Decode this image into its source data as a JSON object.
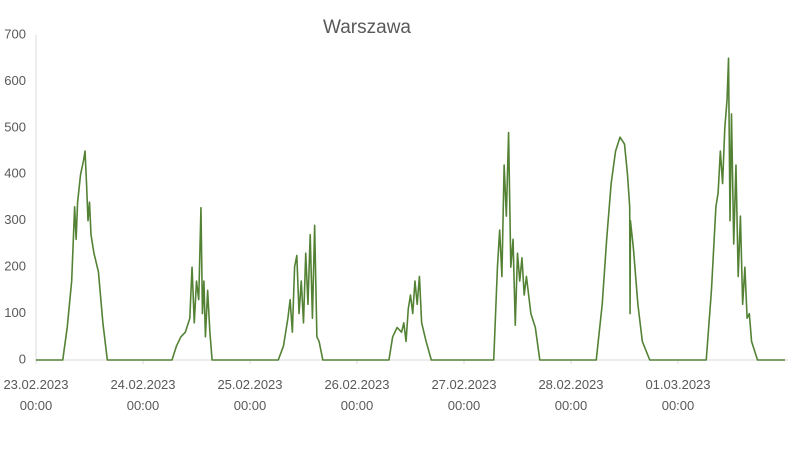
{
  "chart_data": {
    "type": "line",
    "title": "Warszawa",
    "x": [
      "2023-02-23 00:00",
      "2023-02-23 06:00",
      "2023-02-23 07:00",
      "2023-02-23 08:00",
      "2023-02-23 08:40",
      "2023-02-23 09:00",
      "2023-02-23 09:20",
      "2023-02-23 10:00",
      "2023-02-23 10:40",
      "2023-02-23 11:00",
      "2023-02-23 11:20",
      "2023-02-23 11:40",
      "2023-02-23 12:00",
      "2023-02-23 12:20",
      "2023-02-23 13:00",
      "2023-02-23 14:00",
      "2023-02-23 15:00",
      "2023-02-23 16:00",
      "2023-02-24 06:30",
      "2023-02-24 07:30",
      "2023-02-24 08:30",
      "2023-02-24 09:30",
      "2023-02-24 10:30",
      "2023-02-24 11:00",
      "2023-02-24 11:30",
      "2023-02-24 12:00",
      "2023-02-24 12:30",
      "2023-02-24 13:00",
      "2023-02-24 13:20",
      "2023-02-24 13:40",
      "2023-02-24 14:00",
      "2023-02-24 14:30",
      "2023-02-24 15:00",
      "2023-02-24 15:30",
      "2023-02-25 06:20",
      "2023-02-25 07:30",
      "2023-02-25 08:30",
      "2023-02-25 09:00",
      "2023-02-25 09:30",
      "2023-02-25 10:00",
      "2023-02-25 10:30",
      "2023-02-25 11:00",
      "2023-02-25 11:30",
      "2023-02-25 12:00",
      "2023-02-25 12:30",
      "2023-02-25 13:00",
      "2023-02-25 13:30",
      "2023-02-25 14:00",
      "2023-02-25 14:30",
      "2023-02-25 15:00",
      "2023-02-25 15:30",
      "2023-02-25 16:20",
      "2023-02-26 07:10",
      "2023-02-26 08:00",
      "2023-02-26 09:00",
      "2023-02-26 10:00",
      "2023-02-26 10:30",
      "2023-02-26 11:00",
      "2023-02-26 11:30",
      "2023-02-26 12:00",
      "2023-02-26 12:30",
      "2023-02-26 13:00",
      "2023-02-26 13:30",
      "2023-02-26 14:00",
      "2023-02-26 14:30",
      "2023-02-26 15:30",
      "2023-02-26 16:40",
      "2023-02-27 06:40",
      "2023-02-27 07:30",
      "2023-02-27 08:00",
      "2023-02-27 08:30",
      "2023-02-27 09:00",
      "2023-02-27 09:30",
      "2023-02-27 10:00",
      "2023-02-27 10:30",
      "2023-02-27 11:00",
      "2023-02-27 11:30",
      "2023-02-27 12:00",
      "2023-02-27 12:30",
      "2023-02-27 13:00",
      "2023-02-27 13:30",
      "2023-02-27 14:00",
      "2023-02-27 15:00",
      "2023-02-27 16:00",
      "2023-02-27 17:00",
      "2023-02-28 05:40",
      "2023-02-28 07:00",
      "2023-02-28 08:00",
      "2023-02-28 09:00",
      "2023-02-28 10:00",
      "2023-02-28 11:00",
      "2023-02-28 12:00",
      "2023-02-28 12:40",
      "2023-02-28 13:10",
      "2023-02-28 13:15",
      "2023-02-28 13:20",
      "2023-02-28 14:00",
      "2023-02-28 15:00",
      "2023-02-28 16:00",
      "2023-02-28 17:40",
      "2023-03-01 06:20",
      "2023-03-01 07:30",
      "2023-03-01 08:30",
      "2023-03-01 09:00",
      "2023-03-01 09:30",
      "2023-03-01 10:00",
      "2023-03-01 10:30",
      "2023-03-01 11:00",
      "2023-03-01 11:20",
      "2023-03-01 11:40",
      "2023-03-01 12:00",
      "2023-03-01 12:30",
      "2023-03-01 13:00",
      "2023-03-01 13:30",
      "2023-03-01 14:00",
      "2023-03-01 14:30",
      "2023-03-01 15:00",
      "2023-03-01 15:30",
      "2023-03-01 16:00",
      "2023-03-01 16:30",
      "2023-03-01 17:50",
      "2023-03-02 00:00"
    ],
    "series": [
      {
        "color": "#548235",
        "values": [
          0,
          0,
          70,
          170,
          330,
          260,
          340,
          400,
          430,
          450,
          380,
          300,
          340,
          270,
          230,
          190,
          80,
          0,
          0,
          30,
          50,
          60,
          90,
          200,
          80,
          170,
          130,
          328,
          100,
          170,
          50,
          150,
          60,
          0,
          0,
          30,
          90,
          130,
          60,
          200,
          225,
          100,
          170,
          80,
          230,
          120,
          270,
          90,
          290,
          50,
          40,
          0,
          0,
          50,
          70,
          60,
          80,
          40,
          110,
          140,
          100,
          170,
          120,
          180,
          80,
          40,
          0,
          0,
          200,
          280,
          180,
          420,
          310,
          490,
          200,
          260,
          75,
          230,
          170,
          220,
          140,
          180,
          100,
          70,
          0,
          0,
          120,
          260,
          380,
          450,
          480,
          465,
          400,
          330,
          100,
          300,
          240,
          120,
          40,
          0,
          0,
          150,
          330,
          360,
          450,
          380,
          500,
          560,
          650,
          300,
          530,
          250,
          420,
          180,
          310,
          120,
          200,
          90,
          100,
          40,
          0,
          0
        ]
      }
    ],
    "xlim": [
      "2023-02-23 00:00",
      "2023-03-02 00:00"
    ],
    "xticks": [
      {
        "value": "2023-02-23 00:00",
        "label": "23.02.2023 00:00"
      },
      {
        "value": "2023-02-24 00:00",
        "label": "24.02.2023 00:00"
      },
      {
        "value": "2023-02-25 00:00",
        "label": "25.02.2023 00:00"
      },
      {
        "value": "2023-02-26 00:00",
        "label": "26.02.2023 00:00"
      },
      {
        "value": "2023-02-27 00:00",
        "label": "27.02.2023 00:00"
      },
      {
        "value": "2023-02-28 00:00",
        "label": "28.02.2023 00:00"
      },
      {
        "value": "2023-03-01 00:00",
        "label": "01.03.2023 00:00"
      }
    ],
    "ylim": [
      0,
      700
    ],
    "yticks": [
      0,
      100,
      200,
      300,
      400,
      500,
      600,
      700
    ],
    "grid": false
  }
}
